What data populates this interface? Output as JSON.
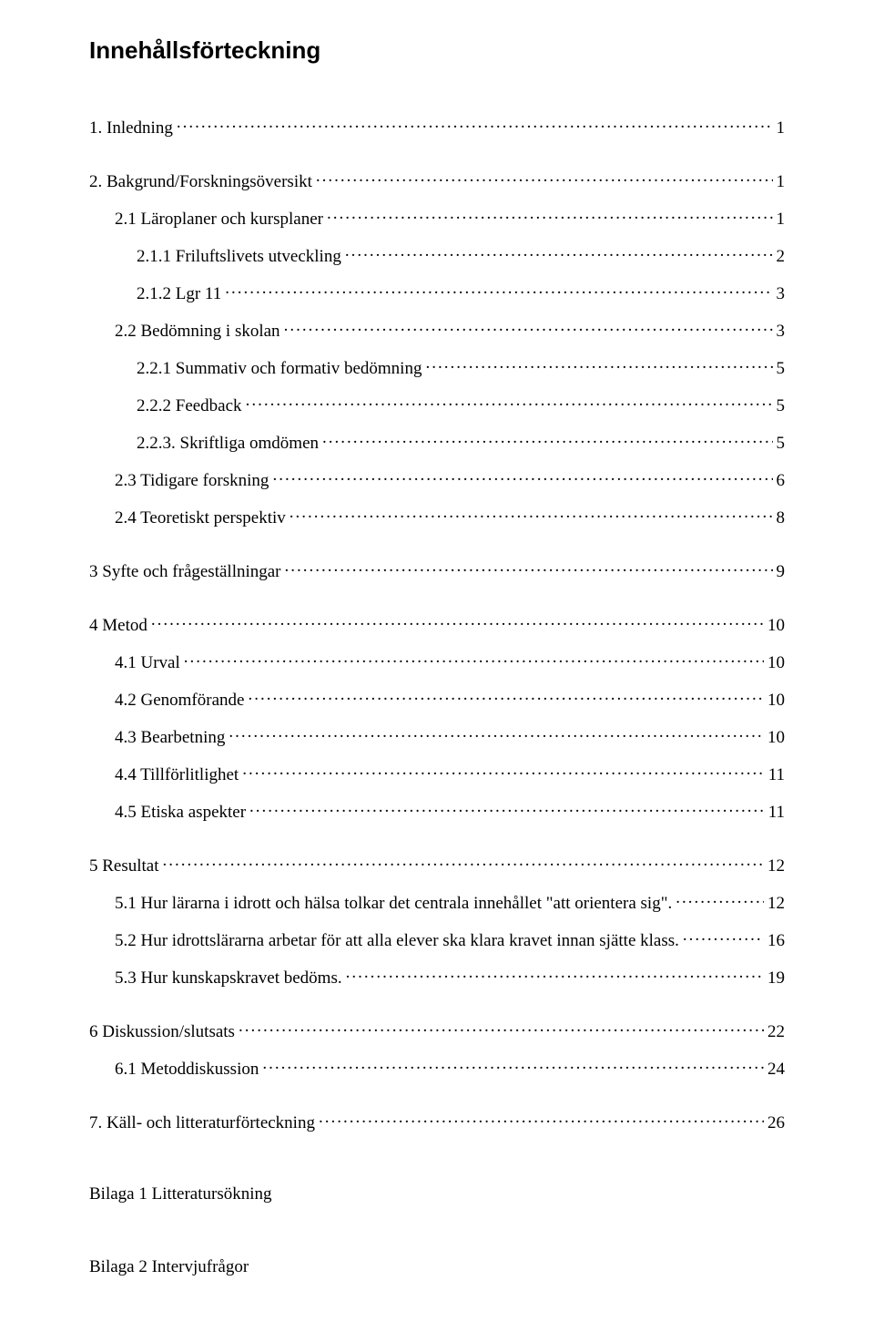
{
  "title": "Innehållsförteckning",
  "toc": [
    {
      "label": "1.    Inledning",
      "page": "1",
      "level": 0,
      "space": "l"
    },
    {
      "label": "2.    Bakgrund/Forskningsöversikt",
      "page": "1",
      "level": 0,
      "space": "l"
    },
    {
      "label": "2.1 Läroplaner och kursplaner",
      "page": "1",
      "level": 1,
      "space": "m"
    },
    {
      "label": "2.1.1 Friluftslivets utveckling",
      "page": "2",
      "level": 2,
      "space": "m"
    },
    {
      "label": "2.1.2 Lgr 11",
      "page": "3",
      "level": 2,
      "space": "m"
    },
    {
      "label": "2.2 Bedömning i skolan",
      "page": "3",
      "level": 1,
      "space": "m"
    },
    {
      "label": "2.2.1 Summativ och formativ bedömning",
      "page": "5",
      "level": 2,
      "space": "m"
    },
    {
      "label": "2.2.2 Feedback",
      "page": "5",
      "level": 2,
      "space": "m"
    },
    {
      "label": "2.2.3. Skriftliga omdömen",
      "page": "5",
      "level": 2,
      "space": "m"
    },
    {
      "label": "2.3 Tidigare forskning",
      "page": "6",
      "level": 1,
      "space": "m"
    },
    {
      "label": "2.4 Teoretiskt perspektiv",
      "page": "8",
      "level": 1,
      "space": "m"
    },
    {
      "label": "3    Syfte och frågeställningar",
      "page": "9",
      "level": 0,
      "space": "l"
    },
    {
      "label": "4    Metod",
      "page": "10",
      "level": 0,
      "space": "l"
    },
    {
      "label": "4.1 Urval",
      "page": "10",
      "level": 1,
      "space": "m"
    },
    {
      "label": "4.2 Genomförande",
      "page": "10",
      "level": 1,
      "space": "m"
    },
    {
      "label": "4.3 Bearbetning",
      "page": "10",
      "level": 1,
      "space": "m"
    },
    {
      "label": "4.4 Tillförlitlighet",
      "page": "11",
      "level": 1,
      "space": "m"
    },
    {
      "label": "4.5 Etiska aspekter",
      "page": "11",
      "level": 1,
      "space": "m"
    },
    {
      "label": "5    Resultat",
      "page": "12",
      "level": 0,
      "space": "l"
    },
    {
      "label": "5.1 Hur lärarna i idrott och hälsa tolkar det centrala innehållet \"att orientera sig\".",
      "page": "12",
      "level": 1,
      "space": "m"
    },
    {
      "label": "5.2 Hur idrottslärarna arbetar för att alla elever ska klara kravet innan sjätte klass.",
      "page": "16",
      "level": 1,
      "space": "m"
    },
    {
      "label": "5.3 Hur kunskapskravet bedöms.",
      "page": "19",
      "level": 1,
      "space": "m"
    },
    {
      "label": "6 Diskussion/slutsats",
      "page": "22",
      "level": 0,
      "space": "l"
    },
    {
      "label": "6.1 Metoddiskussion",
      "page": "24",
      "level": 1,
      "space": "m"
    },
    {
      "label": "7.    Käll- och litteraturförteckning",
      "page": "26",
      "level": 0,
      "space": "l"
    }
  ],
  "appendix": [
    "Bilaga 1 Litteratursökning",
    "Bilaga 2 Intervjufrågor"
  ]
}
